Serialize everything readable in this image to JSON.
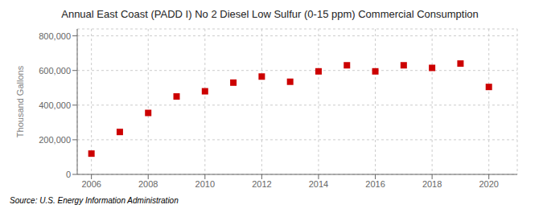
{
  "chart_data": {
    "type": "scatter",
    "title": "Annual East Coast (PADD I) No 2 Diesel Low Sulfur (0-15 ppm) Commercial Consumption",
    "y_label": "Thousand Gallons",
    "annotations": [
      "Source: U.S. Energy Information Administration"
    ],
    "x": [
      2006,
      2007,
      2008,
      2009,
      2010,
      2011,
      2012,
      2013,
      2014,
      2015,
      2016,
      2017,
      2018,
      2019,
      2020
    ],
    "values": [
      120000,
      245000,
      355000,
      450000,
      480000,
      530000,
      565000,
      535000,
      595000,
      630000,
      595000,
      630000,
      615000,
      640000,
      505000
    ],
    "color": "#cc0000",
    "marker": "square",
    "xlim": [
      2005.5,
      2021.0
    ],
    "ylim": [
      0,
      840000
    ],
    "xticks": [
      2006,
      2008,
      2010,
      2012,
      2014,
      2016,
      2018,
      2020
    ],
    "yticks": [
      0,
      {
        "value": 200000,
        "label": "200,000"
      },
      {
        "value": 400000,
        "label": "400,000"
      },
      {
        "value": 600000,
        "label": "600,000"
      },
      {
        "value": 800000,
        "label": "800,000"
      }
    ],
    "grid": true
  }
}
